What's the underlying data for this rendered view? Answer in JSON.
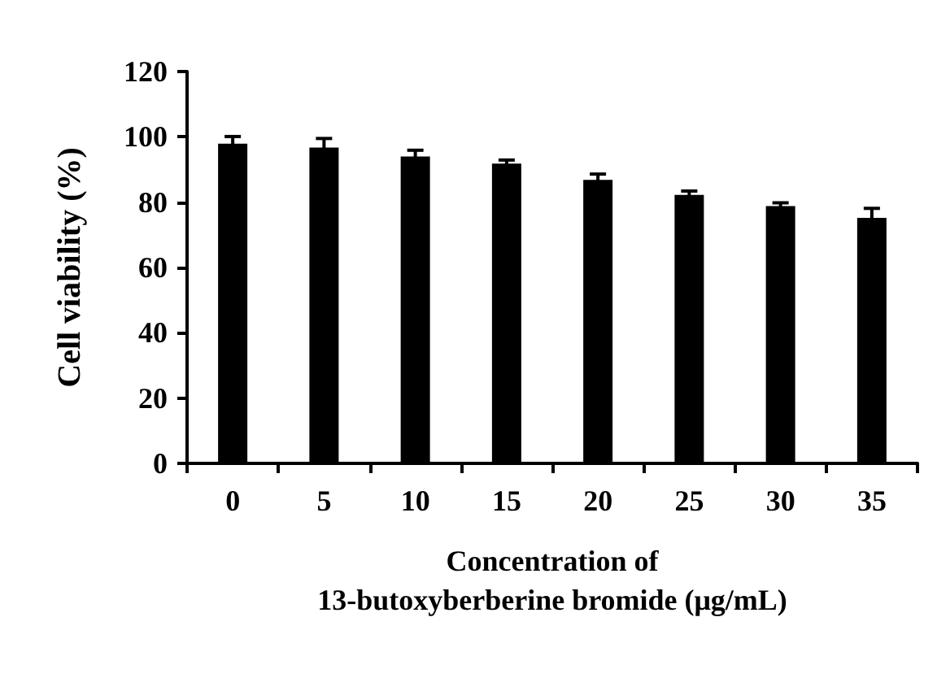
{
  "chart_data": {
    "type": "bar",
    "xlabel": "Concentration of\n13-butoxyberberine bromide (μg/mL)",
    "ylabel": "Cell viability (%)",
    "categories": [
      "0",
      "5",
      "10",
      "15",
      "20",
      "25",
      "30",
      "35"
    ],
    "values": [
      97.9,
      96.7,
      94,
      91.8,
      86.8,
      82.2,
      78.8,
      75.2
    ],
    "errors": [
      2.2,
      2.8,
      1.9,
      1.1,
      1.8,
      1.2,
      1,
      2.9
    ],
    "color": "#000000",
    "ylim": [
      0,
      120
    ],
    "yticks": [
      0,
      20,
      40,
      60,
      80,
      100,
      120
    ]
  }
}
